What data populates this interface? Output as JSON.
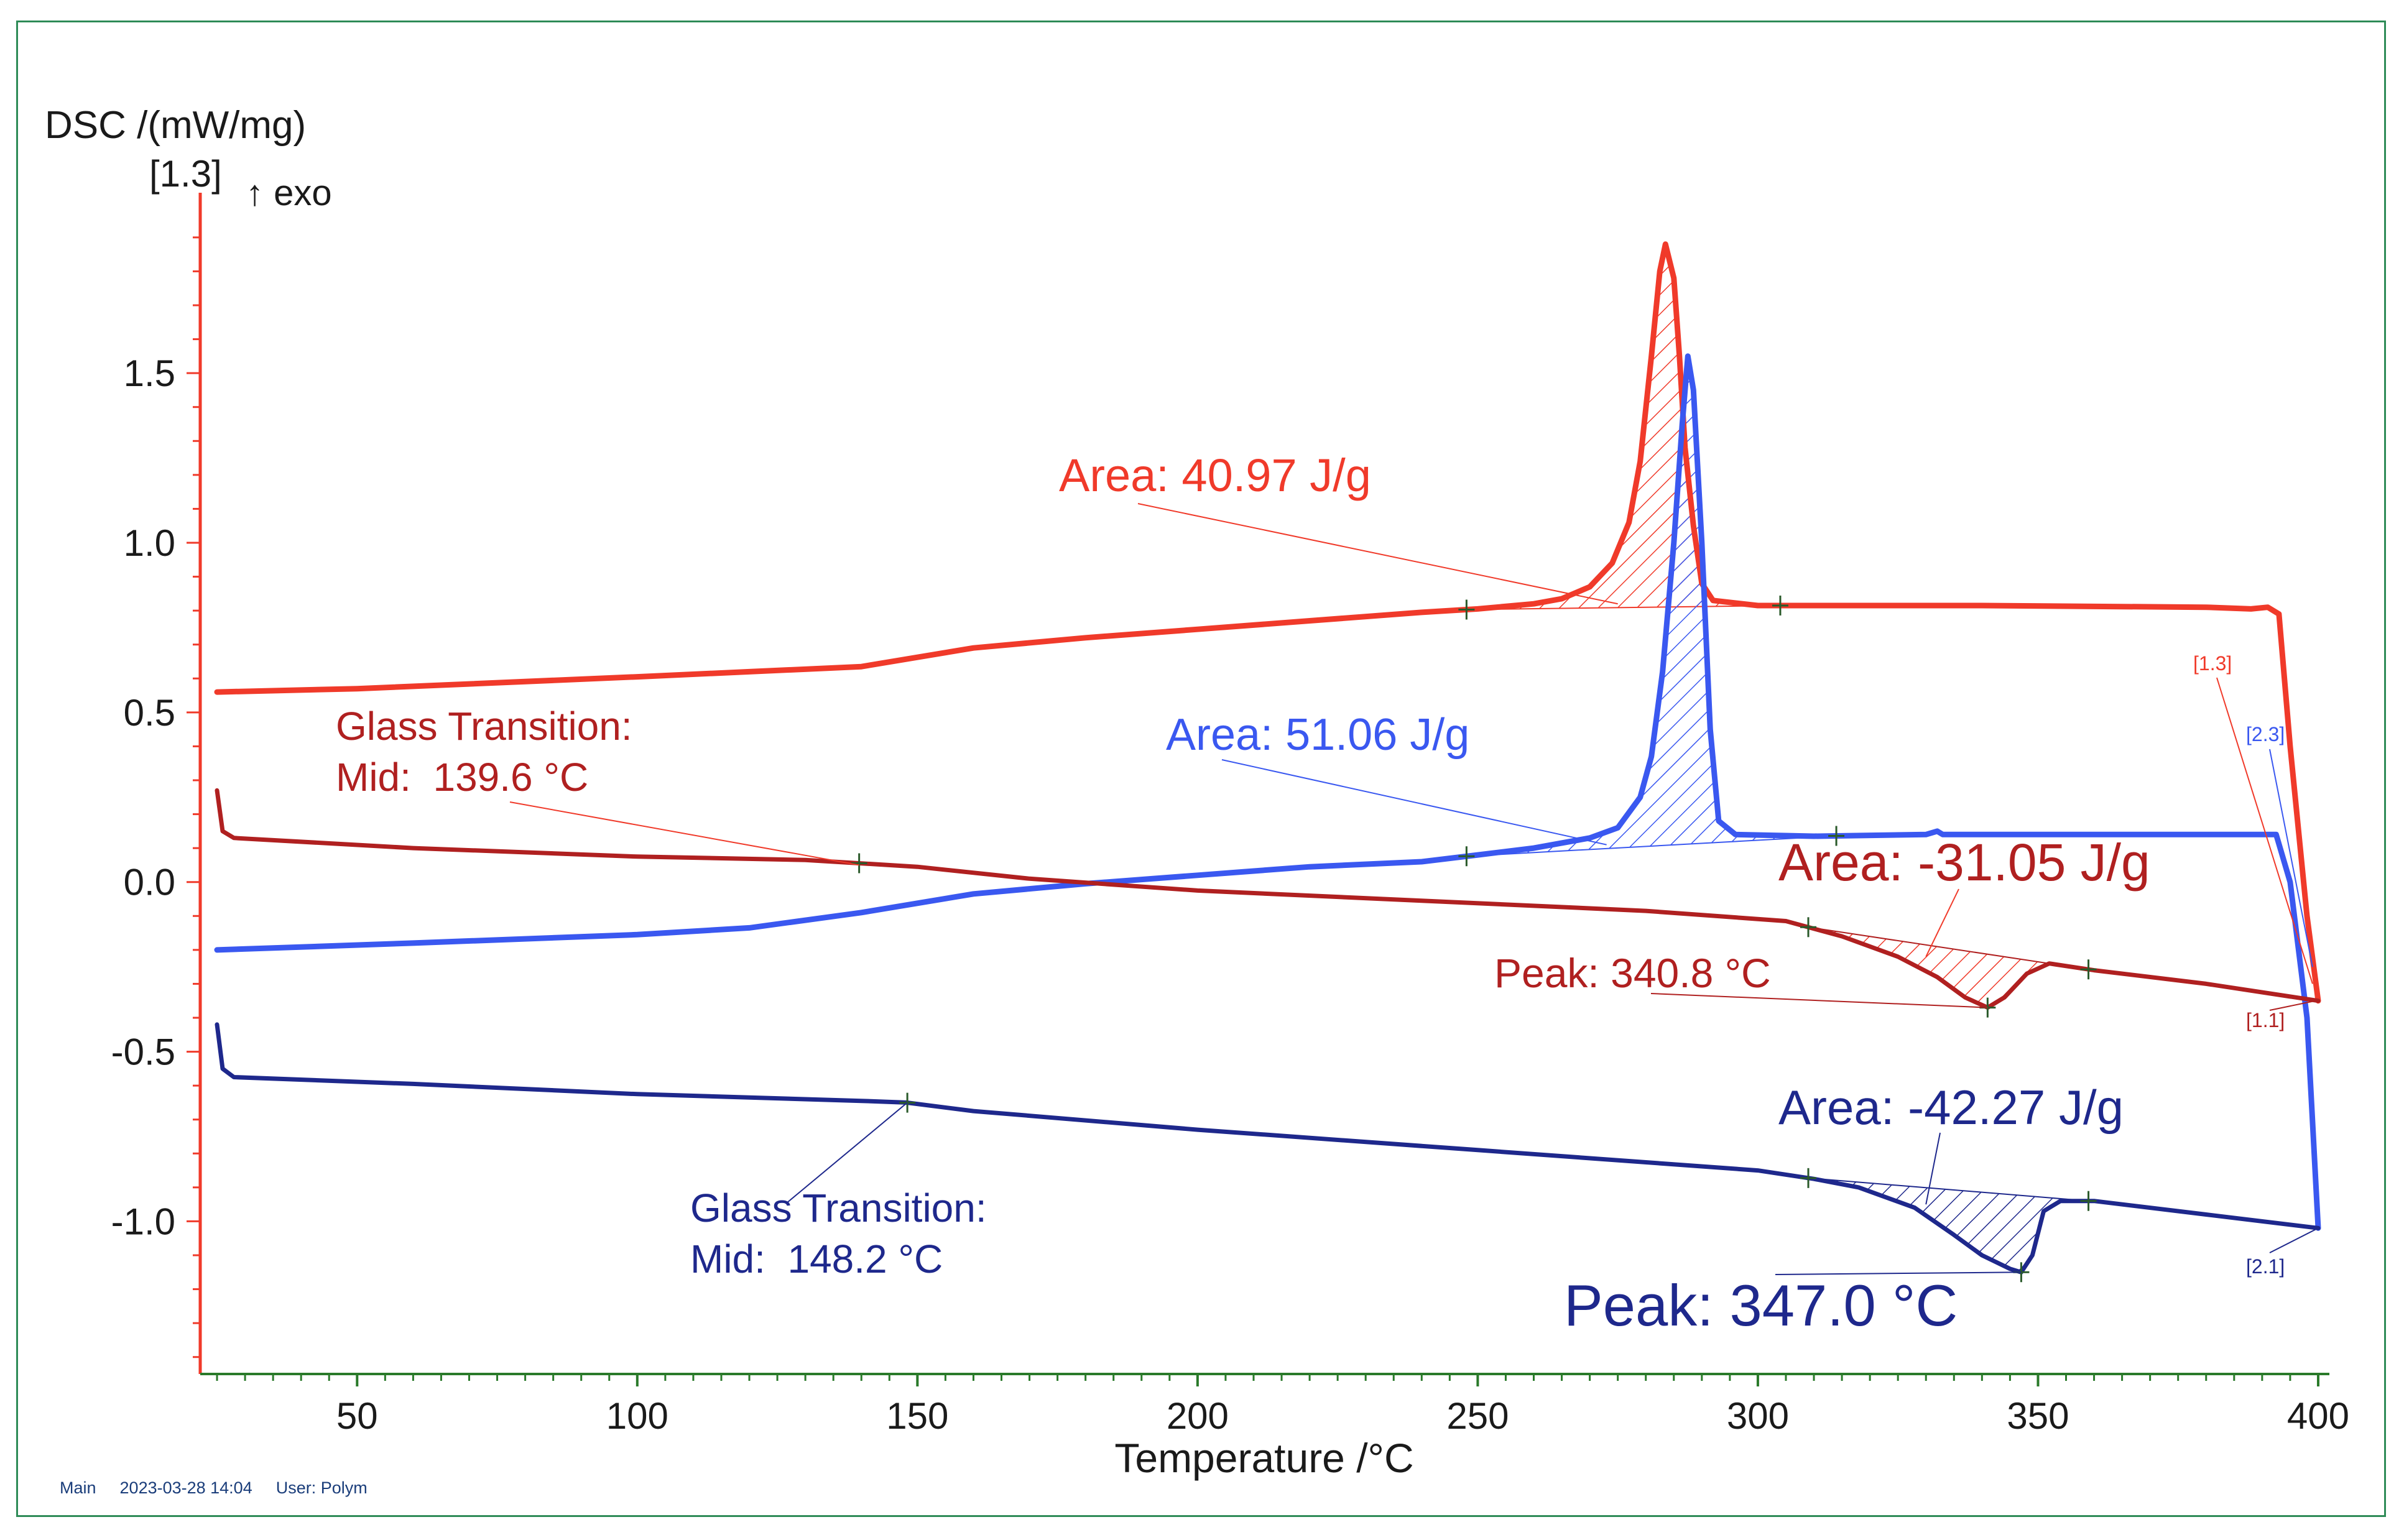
{
  "chart_data": {
    "type": "line",
    "ylabel": "DSC /(mW/mg)",
    "ylabel_index": "[1.3]",
    "exo_marker": "↑ exo",
    "xlabel": "Temperature /°C",
    "xlim": [
      22,
      402
    ],
    "ylim": [
      -1.45,
      2.05
    ],
    "xticks": [
      50,
      100,
      150,
      200,
      250,
      300,
      350,
      400
    ],
    "yticks": [
      1.5,
      1.0,
      0.5,
      0.0,
      -0.5,
      -1.0
    ],
    "ytick_labels": [
      "1.5",
      "1.0",
      "0.5",
      "0.0",
      "-0.5",
      "-1.0"
    ],
    "grid": false,
    "series": [
      {
        "color": "#f03a2a",
        "points": [
          [
            25,
            0.56
          ],
          [
            50,
            0.57
          ],
          [
            100,
            0.605
          ],
          [
            120,
            0.62
          ],
          [
            140,
            0.635
          ],
          [
            160,
            0.69
          ],
          [
            180,
            0.72
          ],
          [
            200,
            0.745
          ],
          [
            220,
            0.77
          ],
          [
            240,
            0.795
          ],
          [
            250,
            0.805
          ],
          [
            260,
            0.82
          ],
          [
            265,
            0.835
          ],
          [
            270,
            0.87
          ],
          [
            274,
            0.94
          ],
          [
            277,
            1.06
          ],
          [
            279,
            1.24
          ],
          [
            281,
            1.55
          ],
          [
            282.5,
            1.8
          ],
          [
            283.5,
            1.88
          ],
          [
            285,
            1.78
          ],
          [
            286,
            1.55
          ],
          [
            287,
            1.28
          ],
          [
            288.5,
            1.05
          ],
          [
            290,
            0.88
          ],
          [
            292,
            0.83
          ],
          [
            300,
            0.815
          ],
          [
            340,
            0.815
          ],
          [
            380,
            0.81
          ],
          [
            388,
            0.805
          ],
          [
            391,
            0.81
          ],
          [
            393,
            0.79
          ],
          [
            395,
            0.4
          ],
          [
            398,
            -0.1
          ],
          [
            400,
            -0.35
          ]
        ]
      },
      {
        "color": "#3a58f0",
        "points": [
          [
            25,
            -0.2
          ],
          [
            60,
            -0.18
          ],
          [
            100,
            -0.155
          ],
          [
            120,
            -0.135
          ],
          [
            140,
            -0.09
          ],
          [
            160,
            -0.035
          ],
          [
            180,
            -0.005
          ],
          [
            200,
            0.02
          ],
          [
            220,
            0.045
          ],
          [
            240,
            0.06
          ],
          [
            250,
            0.08
          ],
          [
            260,
            0.1
          ],
          [
            270,
            0.13
          ],
          [
            275,
            0.16
          ],
          [
            279,
            0.25
          ],
          [
            281,
            0.37
          ],
          [
            283,
            0.62
          ],
          [
            285,
            1.0
          ],
          [
            286.5,
            1.35
          ],
          [
            287.5,
            1.55
          ],
          [
            288.5,
            1.45
          ],
          [
            290,
            1.0
          ],
          [
            291.5,
            0.45
          ],
          [
            293,
            0.18
          ],
          [
            296,
            0.14
          ],
          [
            310,
            0.135
          ],
          [
            330,
            0.14
          ],
          [
            332,
            0.15
          ],
          [
            333,
            0.14
          ],
          [
            350,
            0.14
          ],
          [
            390,
            0.14
          ],
          [
            392.5,
            0.14
          ],
          [
            395,
            0.0
          ],
          [
            398,
            -0.4
          ],
          [
            400,
            -1.02
          ]
        ]
      },
      {
        "color": "#b02020",
        "points": [
          [
            25,
            0.27
          ],
          [
            26,
            0.15
          ],
          [
            28,
            0.13
          ],
          [
            60,
            0.1
          ],
          [
            100,
            0.075
          ],
          [
            130,
            0.065
          ],
          [
            150,
            0.045
          ],
          [
            170,
            0.01
          ],
          [
            200,
            -0.025
          ],
          [
            240,
            -0.055
          ],
          [
            280,
            -0.085
          ],
          [
            305,
            -0.115
          ],
          [
            315,
            -0.16
          ],
          [
            325,
            -0.22
          ],
          [
            332,
            -0.28
          ],
          [
            337,
            -0.34
          ],
          [
            341,
            -0.37
          ],
          [
            344,
            -0.34
          ],
          [
            348,
            -0.27
          ],
          [
            352,
            -0.24
          ],
          [
            360,
            -0.26
          ],
          [
            380,
            -0.3
          ],
          [
            400,
            -0.35
          ]
        ]
      },
      {
        "color": "#1e288c",
        "points": [
          [
            25,
            -0.42
          ],
          [
            26,
            -0.55
          ],
          [
            28,
            -0.575
          ],
          [
            60,
            -0.595
          ],
          [
            100,
            -0.625
          ],
          [
            140,
            -0.645
          ],
          [
            148,
            -0.65
          ],
          [
            160,
            -0.675
          ],
          [
            200,
            -0.73
          ],
          [
            250,
            -0.79
          ],
          [
            300,
            -0.85
          ],
          [
            310,
            -0.875
          ],
          [
            318,
            -0.9
          ],
          [
            328,
            -0.96
          ],
          [
            335,
            -1.04
          ],
          [
            340,
            -1.1
          ],
          [
            345,
            -1.14
          ],
          [
            347,
            -1.15
          ],
          [
            349,
            -1.1
          ],
          [
            351,
            -0.97
          ],
          [
            354,
            -0.94
          ],
          [
            360,
            -0.94
          ],
          [
            380,
            -0.98
          ],
          [
            400,
            -1.02
          ]
        ]
      }
    ],
    "annotations": [
      {
        "text": "Area: 40.97 J/g",
        "color": "#f03a2a"
      },
      {
        "text": "Area: 51.06 J/g",
        "color": "#3a58f0"
      },
      {
        "text": "Area: -31.05 J/g",
        "color": "#b02020"
      },
      {
        "text": "Area: -42.27 J/g",
        "color": "#1e288c"
      },
      {
        "text": "Glass Transition:",
        "color": "#b02020"
      },
      {
        "text": "Mid:  139.6 °C",
        "color": "#b02020"
      },
      {
        "text": "Glass Transition:",
        "color": "#1e288c"
      },
      {
        "text": "Mid:  148.2 °C",
        "color": "#1e288c"
      },
      {
        "text": "Peak: 340.8 °C",
        "color": "#b02020"
      },
      {
        "text": "Peak: 347.0 °C",
        "color": "#1e288c"
      }
    ],
    "segment_labels": [
      "[1.3]",
      "[2.3]",
      "[1.1]",
      "[2.1]"
    ]
  },
  "footer": {
    "mode": "Main",
    "timestamp": "2023-03-28 14:04",
    "user": "User: Polym"
  }
}
